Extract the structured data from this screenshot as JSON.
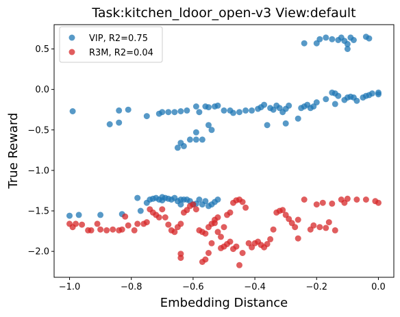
{
  "chart_data": {
    "type": "scatter",
    "title": "Task:kitchen_ldoor_open-v3 View:default",
    "xlabel": "Embedding Distance",
    "ylabel": "True Reward",
    "xlim": [
      -1.05,
      0.05
    ],
    "ylim": [
      -2.32,
      0.8
    ],
    "xticks": [
      -1.0,
      -0.8,
      -0.6,
      -0.4,
      -0.2,
      0.0
    ],
    "xtick_labels": [
      "−1.0",
      "−0.8",
      "−0.6",
      "−0.4",
      "−0.2",
      "0.0"
    ],
    "yticks": [
      0.5,
      0.0,
      -0.5,
      -1.0,
      -1.5,
      -2.0
    ],
    "ytick_labels": [
      "0.5",
      "0.0",
      "−0.5",
      "−1.0",
      "−1.5",
      "−2.0"
    ],
    "grid": false,
    "legend_position": "top-left",
    "series": [
      {
        "name": "VIP, R2=0.75",
        "color": "#1f77b4",
        "points": [
          [
            -0.99,
            -0.27
          ],
          [
            -0.87,
            -0.43
          ],
          [
            -0.84,
            -0.26
          ],
          [
            -0.84,
            -0.41
          ],
          [
            -0.81,
            -0.25
          ],
          [
            -0.75,
            -0.33
          ],
          [
            -0.71,
            -0.3
          ],
          [
            -0.7,
            -0.28
          ],
          [
            -0.68,
            -0.28
          ],
          [
            -0.66,
            -0.28
          ],
          [
            -0.65,
            -0.72
          ],
          [
            -0.64,
            -0.66
          ],
          [
            -0.64,
            -0.27
          ],
          [
            -0.63,
            -0.7
          ],
          [
            -0.62,
            -0.26
          ],
          [
            -0.61,
            -0.62
          ],
          [
            -0.59,
            -0.53
          ],
          [
            -0.59,
            -0.62
          ],
          [
            -0.59,
            -0.21
          ],
          [
            -0.58,
            -0.28
          ],
          [
            -0.57,
            -0.62
          ],
          [
            -0.56,
            -0.21
          ],
          [
            -0.55,
            -0.44
          ],
          [
            -0.55,
            -0.22
          ],
          [
            -0.54,
            -0.5
          ],
          [
            -0.53,
            -0.21
          ],
          [
            -0.52,
            -0.2
          ],
          [
            -0.5,
            -0.26
          ],
          [
            -0.48,
            -0.26
          ],
          [
            -0.47,
            -0.29
          ],
          [
            -0.45,
            -0.28
          ],
          [
            -0.43,
            -0.26
          ],
          [
            -0.41,
            -0.26
          ],
          [
            -0.39,
            -0.24
          ],
          [
            -0.38,
            -0.22
          ],
          [
            -0.37,
            -0.19
          ],
          [
            -0.36,
            -0.44
          ],
          [
            -0.35,
            -0.23
          ],
          [
            -0.34,
            -0.25
          ],
          [
            -0.33,
            -0.2
          ],
          [
            -0.32,
            -0.23
          ],
          [
            -0.31,
            -0.28
          ],
          [
            -0.3,
            -0.42
          ],
          [
            -0.3,
            -0.24
          ],
          [
            -0.29,
            -0.2
          ],
          [
            -0.26,
            -0.36
          ],
          [
            -0.25,
            -0.23
          ],
          [
            -0.24,
            -0.21
          ],
          [
            -0.23,
            -0.19
          ],
          [
            -0.22,
            -0.23
          ],
          [
            -0.21,
            -0.21
          ],
          [
            -0.2,
            -0.16
          ],
          [
            -0.17,
            -0.12
          ],
          [
            -0.15,
            -0.04
          ],
          [
            -0.14,
            -0.05
          ],
          [
            -0.14,
            -0.18
          ],
          [
            -0.13,
            -0.08
          ],
          [
            -0.11,
            -0.13
          ],
          [
            -0.1,
            -0.1
          ],
          [
            -0.09,
            -0.09
          ],
          [
            -0.08,
            -0.1
          ],
          [
            -0.07,
            -0.14
          ],
          [
            -0.05,
            -0.1
          ],
          [
            -0.04,
            -0.08
          ],
          [
            -0.03,
            -0.07
          ],
          [
            -0.02,
            -0.05
          ],
          [
            0.0,
            -0.04
          ],
          [
            0.0,
            -0.06
          ],
          [
            -0.24,
            0.57
          ],
          [
            -0.2,
            0.57
          ],
          [
            -0.19,
            0.62
          ],
          [
            -0.17,
            0.64
          ],
          [
            -0.15,
            0.62
          ],
          [
            -0.13,
            0.61
          ],
          [
            -0.12,
            0.64
          ],
          [
            -0.11,
            0.6
          ],
          [
            -0.1,
            0.5
          ],
          [
            -0.1,
            0.56
          ],
          [
            -0.09,
            0.64
          ],
          [
            -0.08,
            0.61
          ],
          [
            -0.04,
            0.65
          ],
          [
            -0.03,
            0.63
          ],
          [
            -1.0,
            -1.56
          ],
          [
            -0.97,
            -1.55
          ],
          [
            -0.9,
            -1.55
          ],
          [
            -0.83,
            -1.54
          ],
          [
            -0.78,
            -1.34
          ],
          [
            -0.77,
            -1.5
          ],
          [
            -0.75,
            -1.4
          ],
          [
            -0.74,
            -1.36
          ],
          [
            -0.73,
            -1.35
          ],
          [
            -0.72,
            -1.34
          ],
          [
            -0.71,
            -1.36
          ],
          [
            -0.7,
            -1.33
          ],
          [
            -0.7,
            -1.37
          ],
          [
            -0.69,
            -1.34
          ],
          [
            -0.68,
            -1.35
          ],
          [
            -0.67,
            -1.36
          ],
          [
            -0.66,
            -1.34
          ],
          [
            -0.65,
            -1.38
          ],
          [
            -0.64,
            -1.36
          ],
          [
            -0.64,
            -1.42
          ],
          [
            -0.63,
            -1.36
          ],
          [
            -0.62,
            -1.36
          ],
          [
            -0.61,
            -1.38
          ],
          [
            -0.6,
            -1.42
          ],
          [
            -0.59,
            -1.41
          ],
          [
            -0.58,
            -1.36
          ],
          [
            -0.57,
            -1.42
          ],
          [
            -0.56,
            -1.38
          ],
          [
            -0.55,
            -1.44
          ],
          [
            -0.54,
            -1.42
          ],
          [
            -0.53,
            -1.39
          ],
          [
            -0.52,
            -1.36
          ]
        ]
      },
      {
        "name": "R3M, R2=0.04",
        "color": "#d62728",
        "points": [
          [
            -1.0,
            -1.66
          ],
          [
            -0.99,
            -1.7
          ],
          [
            -0.98,
            -1.66
          ],
          [
            -0.96,
            -1.67
          ],
          [
            -0.94,
            -1.74
          ],
          [
            -0.93,
            -1.74
          ],
          [
            -0.91,
            -1.66
          ],
          [
            -0.9,
            -1.73
          ],
          [
            -0.88,
            -1.74
          ],
          [
            -0.86,
            -1.73
          ],
          [
            -0.84,
            -1.74
          ],
          [
            -0.83,
            -1.73
          ],
          [
            -0.82,
            -1.57
          ],
          [
            -0.81,
            -1.68
          ],
          [
            -0.79,
            -1.74
          ],
          [
            -0.78,
            -1.66
          ],
          [
            -0.76,
            -1.66
          ],
          [
            -0.75,
            -1.64
          ],
          [
            -0.74,
            -1.48
          ],
          [
            -0.73,
            -1.52
          ],
          [
            -0.72,
            -1.55
          ],
          [
            -0.71,
            -1.58
          ],
          [
            -0.7,
            -1.48
          ],
          [
            -0.69,
            -1.58
          ],
          [
            -0.68,
            -1.67
          ],
          [
            -0.67,
            -1.74
          ],
          [
            -0.66,
            -1.76
          ],
          [
            -0.65,
            -1.7
          ],
          [
            -0.64,
            -1.66
          ],
          [
            -0.63,
            -1.52
          ],
          [
            -0.62,
            -1.49
          ],
          [
            -0.61,
            -1.44
          ],
          [
            -0.6,
            -1.42
          ],
          [
            -0.59,
            -1.48
          ],
          [
            -0.58,
            -1.74
          ],
          [
            -0.57,
            -1.76
          ],
          [
            -0.56,
            -1.78
          ],
          [
            -0.55,
            -1.7
          ],
          [
            -0.54,
            -1.66
          ],
          [
            -0.53,
            -1.61
          ],
          [
            -0.52,
            -1.76
          ],
          [
            -0.51,
            -1.82
          ],
          [
            -0.5,
            -1.7
          ],
          [
            -0.49,
            -1.55
          ],
          [
            -0.48,
            -1.52
          ],
          [
            -0.47,
            -1.4
          ],
          [
            -0.46,
            -1.37
          ],
          [
            -0.45,
            -1.36
          ],
          [
            -0.44,
            -1.39
          ],
          [
            -0.43,
            -1.46
          ],
          [
            -0.42,
            -1.9
          ],
          [
            -0.41,
            -1.95
          ],
          [
            -0.4,
            -1.9
          ],
          [
            -0.39,
            -1.88
          ],
          [
            -0.38,
            -1.92
          ],
          [
            -0.37,
            -1.95
          ],
          [
            -0.36,
            -1.91
          ],
          [
            -0.35,
            -1.85
          ],
          [
            -0.34,
            -1.73
          ],
          [
            -0.33,
            -1.52
          ],
          [
            -0.32,
            -1.5
          ],
          [
            -0.31,
            -1.49
          ],
          [
            -0.3,
            -1.55
          ],
          [
            -0.29,
            -1.6
          ],
          [
            -0.28,
            -1.65
          ],
          [
            -0.27,
            -1.7
          ],
          [
            -0.26,
            -1.61
          ],
          [
            -0.26,
            -1.84
          ],
          [
            -0.24,
            -1.36
          ],
          [
            -0.22,
            -1.73
          ],
          [
            -0.21,
            -1.68
          ],
          [
            -0.2,
            -1.42
          ],
          [
            -0.19,
            -1.7
          ],
          [
            -0.18,
            -1.4
          ],
          [
            -0.17,
            -1.71
          ],
          [
            -0.16,
            -1.64
          ],
          [
            -0.15,
            -1.41
          ],
          [
            -0.14,
            -1.74
          ],
          [
            -0.12,
            -1.36
          ],
          [
            -0.11,
            -1.4
          ],
          [
            -0.1,
            -1.35
          ],
          [
            -0.07,
            -1.36
          ],
          [
            -0.04,
            -1.36
          ],
          [
            -0.01,
            -1.38
          ],
          [
            0.0,
            -1.4
          ],
          [
            -0.52,
            -1.58
          ],
          [
            -0.53,
            -1.65
          ],
          [
            -0.54,
            -1.9
          ],
          [
            -0.55,
            -2.02
          ],
          [
            -0.56,
            -2.1
          ],
          [
            -0.57,
            -2.13
          ],
          [
            -0.64,
            -2.03
          ],
          [
            -0.64,
            -2.08
          ],
          [
            -0.45,
            -2.17
          ],
          [
            -0.44,
            -2.02
          ],
          [
            -0.47,
            -1.97
          ],
          [
            -0.48,
            -1.88
          ],
          [
            -0.46,
            -1.94
          ],
          [
            -0.49,
            -1.91
          ],
          [
            -0.5,
            -1.94
          ],
          [
            -0.51,
            -1.96
          ]
        ]
      }
    ]
  }
}
